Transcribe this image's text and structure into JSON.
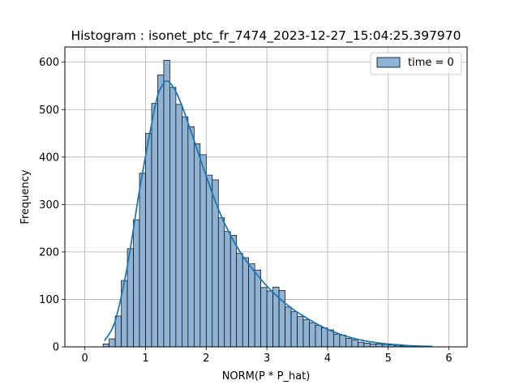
{
  "chart_data": {
    "type": "bar",
    "title": "Histogram : isonet_ptc_fr_7474_2023-12-27_15:04:25.397970",
    "xlabel": "NORM(P * P_hat)",
    "ylabel": "Frequency",
    "xlim": [
      -0.33,
      6.3
    ],
    "ylim": [
      0,
      632
    ],
    "xticks": [
      0,
      1,
      2,
      3,
      4,
      5,
      6
    ],
    "yticks": [
      0,
      100,
      200,
      300,
      400,
      500,
      600
    ],
    "grid": true,
    "legend": {
      "position": "top-right",
      "entries": [
        "time = 0"
      ]
    },
    "series": [
      {
        "name": "time = 0",
        "bar_color": "#8fb3d4",
        "line_color": "#1f77b4",
        "bin_width": 0.1,
        "bin_starts": [
          0.3,
          0.4,
          0.5,
          0.6,
          0.7,
          0.8,
          0.9,
          1.0,
          1.1,
          1.2,
          1.3,
          1.4,
          1.5,
          1.6,
          1.7,
          1.8,
          1.9,
          2.0,
          2.1,
          2.2,
          2.3,
          2.4,
          2.5,
          2.6,
          2.7,
          2.8,
          2.9,
          3.0,
          3.1,
          3.2,
          3.3,
          3.4,
          3.5,
          3.6,
          3.7,
          3.8,
          3.9,
          4.0,
          4.1,
          4.2,
          4.3,
          4.4,
          4.5,
          4.6,
          4.7,
          4.8,
          4.9,
          5.0,
          5.1,
          5.2,
          5.3,
          5.4,
          5.5,
          5.6
        ],
        "counts": [
          6,
          17,
          65,
          140,
          207,
          268,
          366,
          450,
          513,
          573,
          604,
          547,
          511,
          485,
          464,
          428,
          405,
          362,
          352,
          272,
          243,
          235,
          197,
          188,
          175,
          162,
          125,
          118,
          126,
          119,
          84,
          74,
          64,
          57,
          51,
          45,
          40,
          36,
          27,
          25,
          18,
          15,
          10,
          8,
          6,
          6,
          5,
          4,
          3,
          2,
          2,
          1,
          1,
          1
        ],
        "kde_x": [
          0.33,
          0.5,
          0.7,
          0.9,
          1.1,
          1.2,
          1.3,
          1.35,
          1.4,
          1.5,
          1.6,
          1.7,
          1.8,
          1.9,
          2.0,
          2.2,
          2.4,
          2.6,
          2.8,
          3.0,
          3.2,
          3.4,
          3.6,
          3.8,
          4.0,
          4.2,
          4.4,
          4.6,
          4.8,
          5.0,
          5.2,
          5.4,
          5.72
        ],
        "kde_y": [
          14,
          55,
          170,
          330,
          470,
          530,
          556,
          560,
          557,
          538,
          508,
          472,
          435,
          397,
          360,
          290,
          235,
          192,
          158,
          128,
          103,
          82,
          65,
          50,
          37,
          27,
          19,
          13,
          9,
          6,
          4,
          2,
          1
        ]
      }
    ]
  }
}
